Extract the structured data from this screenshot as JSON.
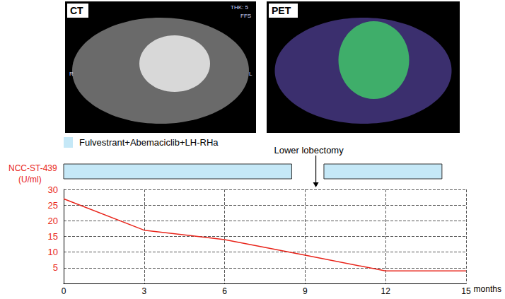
{
  "images": [
    {
      "label": "CT",
      "annotations": [
        "THK: 5",
        "FFS",
        "R",
        "L"
      ]
    },
    {
      "label": "PET"
    }
  ],
  "chart_data": {
    "type": "line",
    "x": [
      0,
      3,
      6,
      9,
      12,
      15
    ],
    "series": [
      {
        "color": "#e8241a",
        "values": [
          27,
          17,
          14,
          9,
          4,
          4
        ]
      }
    ],
    "y_label": [
      "NCC-ST-439",
      "(U/ml)"
    ],
    "x_label": "months",
    "xlim": [
      0,
      15
    ],
    "xticks": [
      0,
      3,
      6,
      9,
      12,
      15
    ],
    "ylim": [
      0,
      30
    ],
    "yticks": [
      5,
      10,
      15,
      20,
      25,
      30
    ],
    "grid": true,
    "treatment": {
      "label": "Fulvestrant+Abemaciclib+LH-RHa",
      "color": "#c5e8f7",
      "periods": [
        [
          0,
          8.5
        ],
        [
          9.7,
          14.1
        ]
      ]
    },
    "annotations": [
      {
        "text": "Lower lobectomy",
        "x": 9.4
      }
    ]
  }
}
